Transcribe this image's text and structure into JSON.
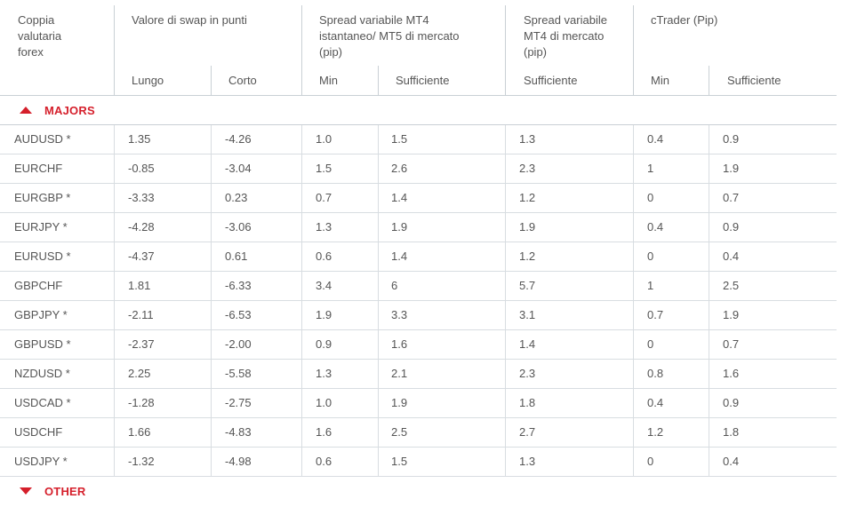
{
  "headers": {
    "pair": "Coppia\nvalutaria\nforex",
    "swap": "Valore di swap in punti",
    "swap_long": "Lungo",
    "swap_short": "Corto",
    "mt4_mt5": "Spread variabile MT4\nistantaneo/ MT5 di mercato\n(pip)",
    "mt4_min": "Min",
    "mt4_mt5_suff": "Sufficiente",
    "mt4_market": "Spread variabile\nMT4 di mercato\n(pip)",
    "mt4_market_suff": "Sufficiente",
    "ctrader": "cTrader (Pip)",
    "ctrader_min": "Min",
    "ctrader_suff": "Sufficiente"
  },
  "sections": {
    "majors": {
      "label": "MAJORS",
      "state": "expanded",
      "icon": "triangle-up-icon"
    },
    "other": {
      "label": "OTHER",
      "state": "collapsed",
      "icon": "triangle-down-icon"
    }
  },
  "rows": [
    [
      "AUDUSD *",
      "1.35",
      "-4.26",
      "1.0",
      "1.5",
      "1.3",
      "0.4",
      "0.9"
    ],
    [
      "EURCHF",
      "-0.85",
      "-3.04",
      "1.5",
      "2.6",
      "2.3",
      "1",
      "1.9"
    ],
    [
      "EURGBP *",
      "-3.33",
      "0.23",
      "0.7",
      "1.4",
      "1.2",
      "0",
      "0.7"
    ],
    [
      "EURJPY *",
      "-4.28",
      "-3.06",
      "1.3",
      "1.9",
      "1.9",
      "0.4",
      "0.9"
    ],
    [
      "EURUSD *",
      "-4.37",
      "0.61",
      "0.6",
      "1.4",
      "1.2",
      "0",
      "0.4"
    ],
    [
      "GBPCHF",
      "1.81",
      "-6.33",
      "3.4",
      "6",
      "5.7",
      "1",
      "2.5"
    ],
    [
      "GBPJPY *",
      "-2.11",
      "-6.53",
      "1.9",
      "3.3",
      "3.1",
      "0.7",
      "1.9"
    ],
    [
      "GBPUSD *",
      "-2.37",
      "-2.00",
      "0.9",
      "1.6",
      "1.4",
      "0",
      "0.7"
    ],
    [
      "NZDUSD *",
      "2.25",
      "-5.58",
      "1.3",
      "2.1",
      "2.3",
      "0.8",
      "1.6"
    ],
    [
      "USDCAD *",
      "-1.28",
      "-2.75",
      "1.0",
      "1.9",
      "1.8",
      "0.4",
      "0.9"
    ],
    [
      "USDCHF",
      "1.66",
      "-4.83",
      "1.6",
      "2.5",
      "2.7",
      "1.2",
      "1.8"
    ],
    [
      "USDJPY *",
      "-1.32",
      "-4.98",
      "0.6",
      "1.5",
      "1.3",
      "0",
      "0.4"
    ]
  ],
  "colors": {
    "accent": "#d51f2b",
    "text": "#555555",
    "grid": "#c9d0d5"
  }
}
